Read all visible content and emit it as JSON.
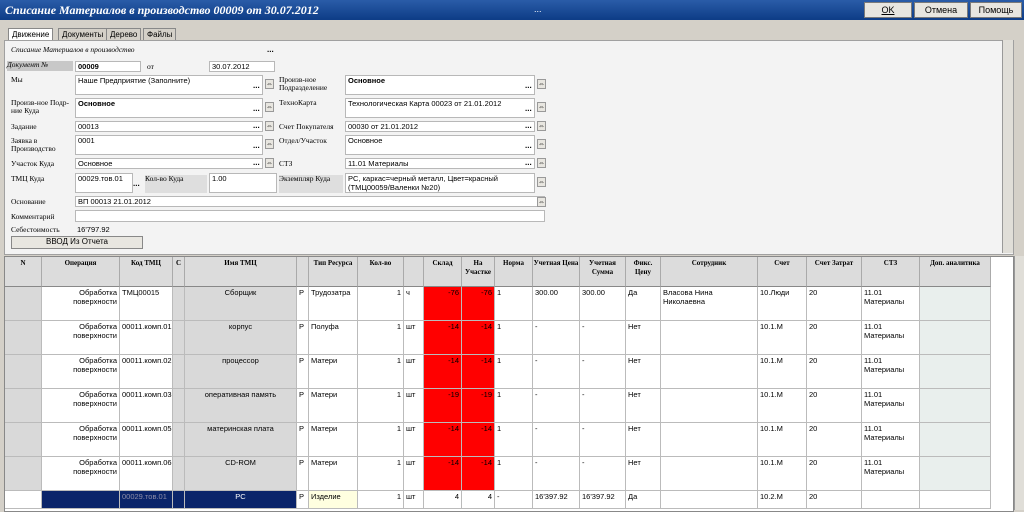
{
  "window": {
    "title": "Списание Материалов в производство 00009 от 30.07.2012",
    "menu_dots": "...",
    "ok": "OK",
    "cancel": "Отмена",
    "help": "Помощь"
  },
  "tabs": [
    "Движение",
    "Документы",
    "Дерево",
    "Файлы"
  ],
  "form": {
    "doc_type": "Списание Материалов в производство",
    "doc_no_label": "Документ №",
    "doc_no": "00009",
    "from_label": "от",
    "date": "30.07.2012",
    "my_label": "Мы",
    "my_value": "Наше Предприятие (Заполните)",
    "prod_from_label": "Произв-ное Подразделение",
    "prod_from_value": "Основное",
    "prod_to_label": "Произв-ное Подр-ние Куда",
    "prod_to_value": "Основное",
    "techmap_label": "ТехноКарта",
    "techmap_value": "Технологическая Карта 00023 от 21.01.2012",
    "task_label": "Задание",
    "task_value": "00013",
    "invoice_label": "Счет Покупателя",
    "invoice_value": "00030 от 21.01.2012",
    "order_label": "Заявка в Производство",
    "order_value": "0001",
    "dept_label": "Отдел/Участок",
    "dept_value": "Основное",
    "site_label": "Участок Куда",
    "site_value": "Основное",
    "stz_label": "СТЗ",
    "stz_value": "11.01 Материалы",
    "tmc_label": "ТМЦ Куда",
    "tmc_value": "00029.тов.01",
    "qty_label": "Кол-во Куда",
    "qty_value": "1.00",
    "inst_label": "Экземпляр Куда",
    "inst_value": "PC, каркас=черный металл, Цвет=красный (ТМЦ00059/Валенки №20)",
    "basis_label": "Основание",
    "basis_value": "ВП 00013 21.01.2012",
    "comment_label": "Комментарий",
    "comment_value": "",
    "cost_label": "Себестоимость",
    "cost_value": "16'797.92",
    "enter_btn": "ВВОД Из Отчета"
  },
  "table": {
    "headers": [
      "N",
      "Операция",
      "Код ТМЦ",
      "C",
      "Имя ТМЦ",
      "",
      "Тип Ресурса",
      "Кол-во",
      "",
      "Склад",
      "На Участке",
      "Норма",
      "Учетная Цена",
      "Учетная Сумма",
      "Фикс. Цену",
      "Сотрудник",
      "Счет",
      "Счет Затрат",
      "СТЗ",
      "Доп. аналитика"
    ],
    "rows": [
      {
        "op": "Обработка поверхности",
        "code": "ТМЦ00015",
        "name": "Сборщик",
        "p": "Р",
        "type": "Трудозатра",
        "qty": "1",
        "unit": "ч",
        "stock": "-76",
        "onsite": "-76",
        "norm": "1",
        "price": "300.00",
        "sum": "300.00",
        "fix": "Да",
        "emp": "Власова Нина Николаевна",
        "acc": "10.Люди",
        "cost": "20",
        "stz": "11.01 Материалы"
      },
      {
        "op": "Обработка поверхности",
        "code": "00011.комп.01",
        "name": "корпус",
        "p": "Р",
        "type": "Полуфа",
        "qty": "1",
        "unit": "шт",
        "stock": "-14",
        "onsite": "-14",
        "norm": "1",
        "price": "-",
        "sum": "-",
        "fix": "Нет",
        "emp": "",
        "acc": "10.1.М",
        "cost": "20",
        "stz": "11.01 Материалы"
      },
      {
        "op": "Обработка поверхности",
        "code": "00011.комп.02",
        "name": "процессор",
        "p": "Р",
        "type": "Матери",
        "qty": "1",
        "unit": "шт",
        "stock": "-14",
        "onsite": "-14",
        "norm": "1",
        "price": "-",
        "sum": "-",
        "fix": "Нет",
        "emp": "",
        "acc": "10.1.М",
        "cost": "20",
        "stz": "11.01 Материалы"
      },
      {
        "op": "Обработка поверхности",
        "code": "00011.комп.03",
        "name": "оперативная память",
        "p": "Р",
        "type": "Матери",
        "qty": "1",
        "unit": "шт",
        "stock": "-19",
        "onsite": "-19",
        "norm": "1",
        "price": "-",
        "sum": "-",
        "fix": "Нет",
        "emp": "",
        "acc": "10.1.М",
        "cost": "20",
        "stz": "11.01 Материалы"
      },
      {
        "op": "Обработка поверхности",
        "code": "00011.комп.05",
        "name": "материнская плата",
        "p": "Р",
        "type": "Матери",
        "qty": "1",
        "unit": "шт",
        "stock": "-14",
        "onsite": "-14",
        "norm": "1",
        "price": "-",
        "sum": "-",
        "fix": "Нет",
        "emp": "",
        "acc": "10.1.М",
        "cost": "20",
        "stz": "11.01 Материалы"
      },
      {
        "op": "Обработка поверхности",
        "code": "00011.комп.06",
        "name": "CD-ROM",
        "p": "Р",
        "type": "Матери",
        "qty": "1",
        "unit": "шт",
        "stock": "-14",
        "onsite": "-14",
        "norm": "1",
        "price": "-",
        "sum": "-",
        "fix": "Нет",
        "emp": "",
        "acc": "10.1.М",
        "cost": "20",
        "stz": "11.01 Материалы"
      }
    ],
    "selected": {
      "code": "00029.тов.01",
      "name": "PC",
      "p": "Р",
      "type": "Изделие",
      "qty": "1",
      "unit": "шт",
      "stock": "4",
      "onsite": "4",
      "norm": "-",
      "price": "16'397.92",
      "sum": "16'397.92",
      "fix": "Да",
      "acc": "10.2.М",
      "cost": "20"
    }
  },
  "colors": {
    "negative_stock": "#ff0000",
    "selected_row": "#0a246a",
    "title_bar": "#0d3c86"
  }
}
